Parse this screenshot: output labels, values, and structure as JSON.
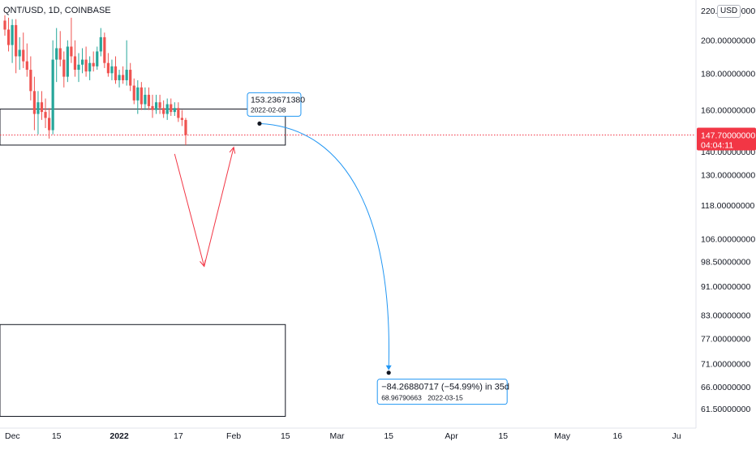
{
  "symbol": {
    "title": "QNT/USD, 1D, COINBASE"
  },
  "currency": "USD",
  "chart_data": {
    "type": "candlestick",
    "symbol": "QNT/USD",
    "interval": "1D",
    "exchange": "COINBASE",
    "price_axis": {
      "scale": "log",
      "ticks": [
        "220.00000000",
        "200.00000000",
        "180.00000000",
        "160.00000000",
        "140.00000000",
        "130.00000000",
        "118.00000000",
        "106.00000000",
        "98.50000000",
        "91.00000000",
        "83.00000000",
        "77.00000000",
        "71.00000000",
        "66.00000000",
        "61.50000000"
      ]
    },
    "time_axis": {
      "ticks": [
        "Dec",
        "15",
        "2022",
        "17",
        "Feb",
        "15",
        "Mar",
        "15",
        "Apr",
        "15",
        "May",
        "16",
        "Ju"
      ],
      "tick_dates": [
        "2021-12-01",
        "2021-12-15",
        "2022-01-01",
        "2022-01-17",
        "2022-02-01",
        "2022-02-15",
        "2022-03-01",
        "2022-03-15",
        "2022-04-01",
        "2022-04-15",
        "2022-05-01",
        "2022-05-16",
        "2022-06-01"
      ]
    },
    "current_price": {
      "value": "147.70000000",
      "countdown": "04:04:11",
      "price": 147.7
    },
    "colors": {
      "up": "#26a69a",
      "down": "#ef5350",
      "projection": "#2196f3",
      "sketch": "#f23645",
      "price_line": "#f23645"
    },
    "candles": [
      {
        "date": "2021-12-01",
        "o": 213,
        "h": 222,
        "l": 203,
        "c": 207
      },
      {
        "date": "2021-12-02",
        "o": 207,
        "h": 215,
        "l": 193,
        "c": 197
      },
      {
        "date": "2021-12-03",
        "o": 197,
        "h": 214,
        "l": 186,
        "c": 210
      },
      {
        "date": "2021-12-04",
        "o": 210,
        "h": 214,
        "l": 180,
        "c": 190
      },
      {
        "date": "2021-12-05",
        "o": 190,
        "h": 202,
        "l": 182,
        "c": 194
      },
      {
        "date": "2021-12-06",
        "o": 194,
        "h": 205,
        "l": 183,
        "c": 187
      },
      {
        "date": "2021-12-07",
        "o": 187,
        "h": 198,
        "l": 178,
        "c": 182
      },
      {
        "date": "2021-12-08",
        "o": 182,
        "h": 190,
        "l": 165,
        "c": 170
      },
      {
        "date": "2021-12-09",
        "o": 170,
        "h": 178,
        "l": 150,
        "c": 158
      },
      {
        "date": "2021-12-10",
        "o": 158,
        "h": 170,
        "l": 148,
        "c": 164
      },
      {
        "date": "2021-12-11",
        "o": 164,
        "h": 170,
        "l": 155,
        "c": 159
      },
      {
        "date": "2021-12-12",
        "o": 159,
        "h": 166,
        "l": 151,
        "c": 156
      },
      {
        "date": "2021-12-13",
        "o": 156,
        "h": 161,
        "l": 146,
        "c": 150
      },
      {
        "date": "2021-12-14",
        "o": 150,
        "h": 200,
        "l": 148,
        "c": 188
      },
      {
        "date": "2021-12-15",
        "o": 188,
        "h": 208,
        "l": 175,
        "c": 195
      },
      {
        "date": "2021-12-16",
        "o": 195,
        "h": 206,
        "l": 184,
        "c": 188
      },
      {
        "date": "2021-12-17",
        "o": 188,
        "h": 193,
        "l": 172,
        "c": 178
      },
      {
        "date": "2021-12-18",
        "o": 178,
        "h": 200,
        "l": 175,
        "c": 196
      },
      {
        "date": "2021-12-19",
        "o": 196,
        "h": 215,
        "l": 186,
        "c": 190
      },
      {
        "date": "2021-12-20",
        "o": 190,
        "h": 200,
        "l": 178,
        "c": 182
      },
      {
        "date": "2021-12-21",
        "o": 182,
        "h": 192,
        "l": 175,
        "c": 185
      },
      {
        "date": "2021-12-22",
        "o": 185,
        "h": 195,
        "l": 180,
        "c": 188
      },
      {
        "date": "2021-12-23",
        "o": 188,
        "h": 196,
        "l": 178,
        "c": 181
      },
      {
        "date": "2021-12-24",
        "o": 181,
        "h": 190,
        "l": 176,
        "c": 186
      },
      {
        "date": "2021-12-25",
        "o": 186,
        "h": 193,
        "l": 181,
        "c": 184
      },
      {
        "date": "2021-12-26",
        "o": 184,
        "h": 196,
        "l": 182,
        "c": 193
      },
      {
        "date": "2021-12-27",
        "o": 193,
        "h": 208,
        "l": 190,
        "c": 202
      },
      {
        "date": "2021-12-28",
        "o": 202,
        "h": 205,
        "l": 183,
        "c": 186
      },
      {
        "date": "2021-12-29",
        "o": 186,
        "h": 192,
        "l": 178,
        "c": 180
      },
      {
        "date": "2021-12-30",
        "o": 180,
        "h": 188,
        "l": 176,
        "c": 184
      },
      {
        "date": "2021-12-31",
        "o": 184,
        "h": 190,
        "l": 174,
        "c": 176
      },
      {
        "date": "2022-01-01",
        "o": 176,
        "h": 182,
        "l": 172,
        "c": 179
      },
      {
        "date": "2022-01-02",
        "o": 179,
        "h": 184,
        "l": 174,
        "c": 176
      },
      {
        "date": "2022-01-03",
        "o": 176,
        "h": 200,
        "l": 173,
        "c": 182
      },
      {
        "date": "2022-01-04",
        "o": 182,
        "h": 186,
        "l": 170,
        "c": 173
      },
      {
        "date": "2022-01-05",
        "o": 173,
        "h": 177,
        "l": 163,
        "c": 165
      },
      {
        "date": "2022-01-06",
        "o": 165,
        "h": 176,
        "l": 158,
        "c": 172
      },
      {
        "date": "2022-01-07",
        "o": 172,
        "h": 175,
        "l": 160,
        "c": 163
      },
      {
        "date": "2022-01-08",
        "o": 163,
        "h": 172,
        "l": 160,
        "c": 168
      },
      {
        "date": "2022-01-09",
        "o": 168,
        "h": 172,
        "l": 160,
        "c": 162
      },
      {
        "date": "2022-01-10",
        "o": 162,
        "h": 168,
        "l": 156,
        "c": 160
      },
      {
        "date": "2022-01-11",
        "o": 160,
        "h": 168,
        "l": 158,
        "c": 164
      },
      {
        "date": "2022-01-12",
        "o": 164,
        "h": 168,
        "l": 158,
        "c": 161
      },
      {
        "date": "2022-01-13",
        "o": 161,
        "h": 165,
        "l": 156,
        "c": 158
      },
      {
        "date": "2022-01-14",
        "o": 158,
        "h": 166,
        "l": 155,
        "c": 163
      },
      {
        "date": "2022-01-15",
        "o": 163,
        "h": 166,
        "l": 157,
        "c": 159
      },
      {
        "date": "2022-01-16",
        "o": 159,
        "h": 164,
        "l": 157,
        "c": 161
      },
      {
        "date": "2022-01-17",
        "o": 161,
        "h": 164,
        "l": 154,
        "c": 156
      },
      {
        "date": "2022-01-18",
        "o": 156,
        "h": 160,
        "l": 152,
        "c": 155
      },
      {
        "date": "2022-01-19",
        "o": 155,
        "h": 156,
        "l": 143,
        "c": 147.7
      }
    ],
    "annotations": [
      {
        "type": "label",
        "value": "153.23671380",
        "date": "2022-02-08",
        "price": 153.2
      },
      {
        "type": "label",
        "value": "68.96790663",
        "date": "2022-03-15",
        "price": 69.0
      },
      {
        "type": "measure",
        "text": "−84.26880717 (−54.99%) in 35d"
      }
    ],
    "shapes": {
      "upper_rectangle": {
        "from_date": "2021-11-25",
        "to_date": "2022-02-15",
        "price_top": 160.5,
        "price_bottom": 143
      },
      "lower_rectangle": {
        "from_date": "2021-11-25",
        "to_date": "2022-02-15",
        "price_top": 80.5,
        "price_bottom": 60
      },
      "v_sketch": [
        {
          "date": "2022-01-16",
          "price": 139
        },
        {
          "date": "2022-01-24",
          "price": 97
        },
        {
          "date": "2022-02-01",
          "price": 142
        }
      ]
    }
  }
}
